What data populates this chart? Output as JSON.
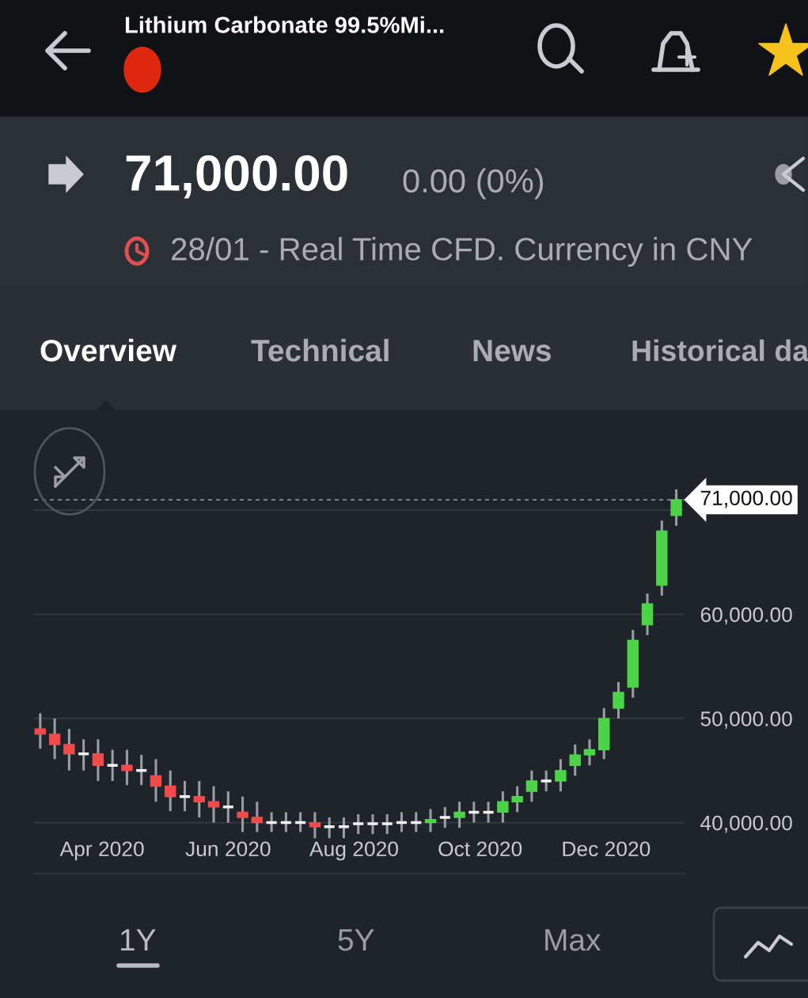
{
  "chart_data": {
    "type": "candlestick",
    "title": "Lithium Carbonate 99.5%Mi...",
    "annotations": [
      "71,000.00",
      "0.00 (0%)",
      "28/01 - Real Time CFD. Currency in CNY",
      "Overview",
      "Technical",
      "News",
      "Historical da",
      "1Y",
      "5Y",
      "Max"
    ],
    "x": [
      "2020-03-02",
      "2020-03-09",
      "2020-03-16",
      "2020-03-23",
      "2020-03-30",
      "2020-04-06",
      "2020-04-13",
      "2020-04-20",
      "2020-04-27",
      "2020-05-04",
      "2020-05-11",
      "2020-05-18",
      "2020-05-25",
      "2020-06-01",
      "2020-06-08",
      "2020-06-15",
      "2020-06-22",
      "2020-06-29",
      "2020-07-06",
      "2020-07-13",
      "2020-07-20",
      "2020-07-27",
      "2020-08-03",
      "2020-08-10",
      "2020-08-17",
      "2020-08-24",
      "2020-08-31",
      "2020-09-07",
      "2020-09-14",
      "2020-09-21",
      "2020-09-28",
      "2020-10-05",
      "2020-10-12",
      "2020-10-19",
      "2020-10-26",
      "2020-11-02",
      "2020-11-09",
      "2020-11-16",
      "2020-11-23",
      "2020-11-30",
      "2020-12-07",
      "2020-12-14",
      "2020-12-21",
      "2020-12-28",
      "2021-01-04"
    ],
    "ohlc": [
      [
        49000,
        50500,
        47100,
        48500
      ],
      [
        48500,
        50000,
        46100,
        47500
      ],
      [
        47500,
        49000,
        45000,
        46600
      ],
      [
        46600,
        48000,
        45000,
        46600
      ],
      [
        46600,
        48000,
        44000,
        45500
      ],
      [
        45500,
        47000,
        44000,
        45500
      ],
      [
        45500,
        47000,
        43600,
        45000
      ],
      [
        45000,
        46500,
        43600,
        45000
      ],
      [
        44500,
        46100,
        42000,
        43500
      ],
      [
        43500,
        45000,
        41100,
        42500
      ],
      [
        42500,
        44000,
        41100,
        42500
      ],
      [
        42500,
        44000,
        40500,
        42000
      ],
      [
        42000,
        43500,
        40000,
        41500
      ],
      [
        41500,
        43000,
        40000,
        41500
      ],
      [
        41000,
        42500,
        39100,
        40500
      ],
      [
        40500,
        42000,
        39100,
        40000
      ],
      [
        40000,
        41000,
        39100,
        40000
      ],
      [
        40000,
        41000,
        39100,
        40000
      ],
      [
        40000,
        41000,
        39100,
        40000
      ],
      [
        40000,
        41000,
        38500,
        39600
      ],
      [
        39600,
        40500,
        38500,
        39600
      ],
      [
        39600,
        40500,
        38500,
        39600
      ],
      [
        39900,
        40800,
        38900,
        39900
      ],
      [
        39900,
        40800,
        38900,
        39900
      ],
      [
        39900,
        40800,
        38900,
        39900
      ],
      [
        40000,
        41000,
        39100,
        40000
      ],
      [
        40000,
        41000,
        39100,
        40000
      ],
      [
        40000,
        41300,
        39100,
        40300
      ],
      [
        40500,
        41500,
        39500,
        40500
      ],
      [
        40500,
        42000,
        39500,
        41000
      ],
      [
        41000,
        42000,
        40000,
        41000
      ],
      [
        41000,
        42000,
        40000,
        41000
      ],
      [
        41000,
        43000,
        40000,
        42000
      ],
      [
        42000,
        43500,
        41000,
        42500
      ],
      [
        43000,
        45000,
        42000,
        44000
      ],
      [
        44000,
        45000,
        43000,
        44000
      ],
      [
        44000,
        46100,
        43000,
        45000
      ],
      [
        45500,
        47500,
        44500,
        46500
      ],
      [
        46500,
        48000,
        45500,
        47000
      ],
      [
        47000,
        51000,
        46100,
        50000
      ],
      [
        51000,
        53500,
        50000,
        52500
      ],
      [
        53000,
        58500,
        52000,
        57500
      ],
      [
        59000,
        62000,
        58000,
        61000
      ],
      [
        62800,
        69000,
        61800,
        68000
      ],
      [
        69500,
        72000,
        68500,
        71000
      ]
    ],
    "colors": [
      "#f04a4a",
      "#f04a4a",
      "#f04a4a",
      "#f2f2f2",
      "#f04a4a",
      "#f2f2f2",
      "#f04a4a",
      "#f2f2f2",
      "#f04a4a",
      "#f04a4a",
      "#f2f2f2",
      "#f04a4a",
      "#f04a4a",
      "#f2f2f2",
      "#f04a4a",
      "#f04a4a",
      "#f2f2f2",
      "#f2f2f2",
      "#f2f2f2",
      "#f04a4a",
      "#f2f2f2",
      "#f2f2f2",
      "#f2f2f2",
      "#f2f2f2",
      "#f2f2f2",
      "#f2f2f2",
      "#f2f2f2",
      "#4cd448",
      "#f2f2f2",
      "#4cd448",
      "#f2f2f2",
      "#f2f2f2",
      "#4cd448",
      "#4cd448",
      "#4cd448",
      "#f2f2f2",
      "#4cd448",
      "#4cd448",
      "#4cd448",
      "#4cd448",
      "#4cd448",
      "#4cd448",
      "#4cd448",
      "#4cd448",
      "#4cd448"
    ],
    "xlim": [
      "2020-02-28",
      "2021-01-08"
    ],
    "xticks": [
      {
        "value": "2020-04-01",
        "label": "Apr 2020"
      },
      {
        "value": "2020-06-01",
        "label": "Jun 2020"
      },
      {
        "value": "2020-08-01",
        "label": "Aug 2020"
      },
      {
        "value": "2020-10-01",
        "label": "Oct 2020"
      },
      {
        "value": "2020-12-01",
        "label": "Dec 2020"
      }
    ],
    "ylim": [
      35100,
      76400
    ],
    "yticks": [
      {
        "value": 40000,
        "label": "40,000.00"
      },
      {
        "value": 50000,
        "label": "50,000.00"
      },
      {
        "value": 60000,
        "label": "60,000.00"
      },
      {
        "value": 70000,
        "label": null
      }
    ],
    "ref_lines": [
      {
        "axis": "y",
        "value": 71000,
        "label": "71,000.00",
        "color": "#9aa0a8",
        "line_style": "dashed"
      }
    ],
    "grid": "y",
    "legend": false
  }
}
